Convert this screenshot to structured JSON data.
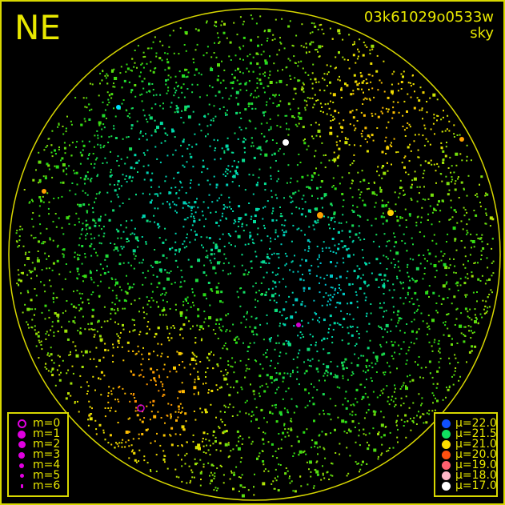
{
  "direction_label": "NE",
  "image_id": "03k61029o0533w",
  "image_type": "sky",
  "colors": {
    "border": "#d8d800",
    "horizon_circle": "#d8d800",
    "text": "#e8e800",
    "magnitude_symbol": "#e000e0"
  },
  "chart_data": {
    "type": "scatter",
    "title": "",
    "magnitude_legend": [
      {
        "label": "m=0",
        "style": "ring"
      },
      {
        "label": "m=1"
      },
      {
        "label": "m=2"
      },
      {
        "label": "m=3"
      },
      {
        "label": "m=4"
      },
      {
        "label": "m=5"
      },
      {
        "label": "m=6"
      }
    ],
    "brightness_legend": [
      {
        "label": "μ=22.0",
        "color": "#1050ff"
      },
      {
        "label": "μ=21.5",
        "color": "#10e060"
      },
      {
        "label": "μ=21.0",
        "color": "#ffe000"
      },
      {
        "label": "μ=20.0",
        "color": "#ff5010"
      },
      {
        "label": "μ=19.0",
        "color": "#ff6070"
      },
      {
        "label": "μ=18.0",
        "color": "#ffb8c8"
      },
      {
        "label": "μ=17.0",
        "color": "#ffffff"
      }
    ]
  }
}
